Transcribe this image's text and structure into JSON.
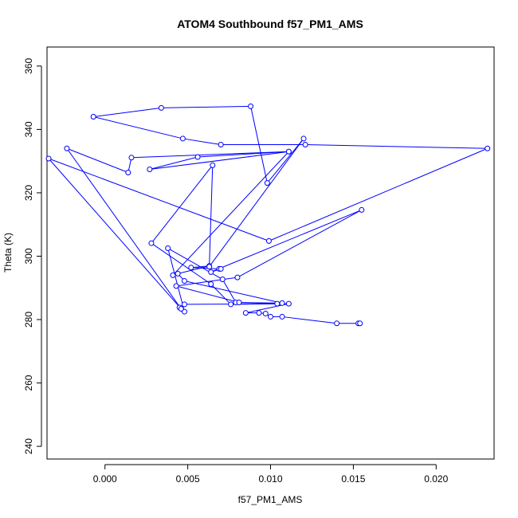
{
  "chart_data": {
    "type": "line",
    "title": "ATOM4 Southbound f57_PM1_AMS",
    "xlabel": "f57_PM1_AMS",
    "ylabel": "Theta (K)",
    "xlim": [
      -0.0035,
      0.0235
    ],
    "ylim": [
      236,
      366
    ],
    "x_ticks": [
      0.0,
      0.005,
      0.01,
      0.015,
      0.02
    ],
    "x_tick_labels": [
      "0.000",
      "0.005",
      "0.010",
      "0.015",
      "0.020"
    ],
    "y_ticks": [
      240,
      260,
      280,
      300,
      320,
      340,
      360
    ],
    "y_tick_labels": [
      "240",
      "260",
      "280",
      "300",
      "320",
      "340",
      "360"
    ],
    "grid": false,
    "series": [
      {
        "color": "#0000ff",
        "marker": "open-circle",
        "points": [
          [
            0.0153,
            278.8
          ],
          [
            0.0154,
            278.8
          ],
          [
            0.014,
            278.8
          ],
          [
            0.0107,
            280.9
          ],
          [
            0.01,
            280.9
          ],
          [
            0.0097,
            281.9
          ],
          [
            0.0093,
            282.1
          ],
          [
            0.0085,
            282.1
          ],
          [
            0.0111,
            285.0
          ],
          [
            0.0048,
            284.8
          ],
          [
            0.0045,
            283.8
          ],
          [
            0.0048,
            282.5
          ],
          [
            0.0038,
            302.5
          ],
          [
            0.0071,
            292.7
          ],
          [
            0.0079,
            285.4
          ],
          [
            0.0107,
            285.2
          ],
          [
            0.0048,
            292.2
          ],
          [
            0.0044,
            294.5
          ],
          [
            0.0063,
            296.9
          ],
          [
            0.0052,
            296.4
          ],
          [
            0.0069,
            296.0
          ],
          [
            0.007,
            296.0
          ],
          [
            0.0064,
            295.0
          ],
          [
            0.0155,
            314.6
          ],
          [
            0.008,
            293.3
          ],
          [
            0.0043,
            290.6
          ],
          [
            0.0081,
            285.4
          ],
          [
            0.0104,
            285.0
          ],
          [
            0.0076,
            284.8
          ],
          [
            0.0064,
            291.2
          ],
          [
            0.0028,
            304.1
          ],
          [
            0.0065,
            328.7
          ],
          [
            0.0063,
            296.7
          ],
          [
            0.012,
            337.1
          ],
          [
            0.0098,
            323.1
          ],
          [
            0.0088,
            347.3
          ],
          [
            0.0034,
            346.8
          ],
          [
            -0.0007,
            344.0
          ],
          [
            0.0047,
            337.1
          ],
          [
            0.007,
            335.2
          ],
          [
            0.0121,
            335.2
          ],
          [
            0.0231,
            334.0
          ],
          [
            0.0099,
            304.8
          ],
          [
            -0.0034,
            330.8
          ],
          [
            0.0046,
            283.4
          ],
          [
            -0.0023,
            334.0
          ],
          [
            0.0014,
            326.4
          ],
          [
            0.0016,
            331.1
          ],
          [
            0.0111,
            333.0
          ],
          [
            0.0056,
            331.3
          ],
          [
            0.0027,
            327.4
          ],
          [
            0.0111,
            333.0
          ],
          [
            0.0041,
            294.0
          ]
        ]
      }
    ]
  }
}
